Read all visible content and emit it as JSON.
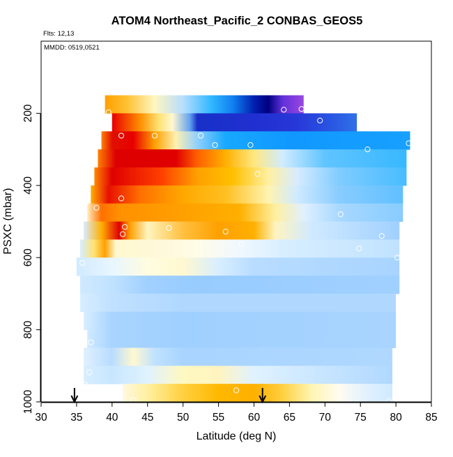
{
  "chart_data": {
    "type": "heatmap",
    "title": "ATOM4 Northeast_Pacific_2 CONBAS_GEOS5",
    "flights_label": "Flts: 12,13",
    "dates_label": "MMDD: 0519,0521",
    "xlabel": "Latitude (deg N)",
    "ylabel": "PSXC (mbar)",
    "xlim": [
      30,
      85
    ],
    "ylim": [
      1000,
      0
    ],
    "x_ticks": [
      30,
      35,
      40,
      45,
      50,
      55,
      60,
      65,
      70,
      75,
      80,
      85
    ],
    "x_tick_labels": [
      "30",
      "35",
      "40",
      "45",
      "50",
      "55",
      "60",
      "65",
      "70",
      "75",
      "80",
      "85"
    ],
    "y_ticks": [
      200,
      400,
      600,
      800,
      1000
    ],
    "y_tick_labels": [
      "200",
      "400",
      "600",
      "800",
      "1000"
    ],
    "grid": false,
    "legend": "none",
    "colors": {
      "red": "#dd0000",
      "orange": "#ff9900",
      "light_yellow": "#fffcc0",
      "light_blue": "#a8d4ff",
      "cyan_blue": "#0fb0ff",
      "dark_blue": "#2020c8",
      "purple": "#8a3ad8"
    },
    "bands": [
      {
        "p_top": 150,
        "p_bot": 200,
        "lat_min": 39.0,
        "lat_max": 67.0,
        "stops": [
          [
            39.0,
            "#ffa000"
          ],
          [
            42.0,
            "#ffc030"
          ],
          [
            46.0,
            "#fff6c0"
          ],
          [
            50.0,
            "#b8ddff"
          ],
          [
            54.0,
            "#30b8ff"
          ],
          [
            57.0,
            "#1080f0"
          ],
          [
            60.0,
            "#0020b0"
          ],
          [
            62.0,
            "#000080"
          ],
          [
            64.0,
            "#6030d8"
          ],
          [
            67.0,
            "#9a48e0"
          ]
        ]
      },
      {
        "p_top": 200,
        "p_bot": 250,
        "lat_min": 40.0,
        "lat_max": 74.5,
        "stops": [
          [
            40.0,
            "#e80000"
          ],
          [
            44.0,
            "#ff9000"
          ],
          [
            46.5,
            "#ffe070"
          ],
          [
            48.5,
            "#fff8d0"
          ],
          [
            51.0,
            "#60a0f0"
          ],
          [
            52.0,
            "#1830c8"
          ],
          [
            60.0,
            "#2030d0"
          ],
          [
            66.0,
            "#2838d8"
          ],
          [
            70.0,
            "#2850e0"
          ],
          [
            74.5,
            "#3070e8"
          ]
        ]
      },
      {
        "p_top": 250,
        "p_bot": 300,
        "lat_min": 38.5,
        "lat_max": 82.0,
        "stops": [
          [
            38.5,
            "#ff8000"
          ],
          [
            40.0,
            "#e01000"
          ],
          [
            43.0,
            "#e80000"
          ],
          [
            46.0,
            "#ffa000"
          ],
          [
            49.0,
            "#fff0b0"
          ],
          [
            52.0,
            "#90d0ff"
          ],
          [
            56.0,
            "#18a8ff"
          ],
          [
            65.0,
            "#1098ff"
          ],
          [
            82.0,
            "#18a0ff"
          ]
        ]
      },
      {
        "p_top": 300,
        "p_bot": 350,
        "lat_min": 38.0,
        "lat_max": 81.5,
        "stops": [
          [
            38.0,
            "#ff8000"
          ],
          [
            40.5,
            "#dd0000"
          ],
          [
            49.0,
            "#e00000"
          ],
          [
            52.0,
            "#ff6000"
          ],
          [
            56.0,
            "#ffb000"
          ],
          [
            60.0,
            "#ffe880"
          ],
          [
            64.0,
            "#d0ecff"
          ],
          [
            70.0,
            "#60c4ff"
          ],
          [
            81.5,
            "#38b8ff"
          ]
        ]
      },
      {
        "p_top": 350,
        "p_bot": 400,
        "lat_min": 37.5,
        "lat_max": 81.5,
        "stops": [
          [
            37.5,
            "#ff8800"
          ],
          [
            40.0,
            "#e00000"
          ],
          [
            47.0,
            "#ff4000"
          ],
          [
            52.0,
            "#ffa000"
          ],
          [
            57.0,
            "#ffc000"
          ],
          [
            62.0,
            "#fff0a0"
          ],
          [
            66.0,
            "#d8ecff"
          ],
          [
            72.0,
            "#80ccff"
          ],
          [
            81.5,
            "#48bcff"
          ]
        ]
      },
      {
        "p_top": 400,
        "p_bot": 450,
        "lat_min": 37.0,
        "lat_max": 81.0,
        "stops": [
          [
            37.0,
            "#ffb000"
          ],
          [
            39.5,
            "#e81000"
          ],
          [
            44.0,
            "#ff7000"
          ],
          [
            50.0,
            "#ffa800"
          ],
          [
            56.0,
            "#ffc020"
          ],
          [
            62.0,
            "#fff4b0"
          ],
          [
            66.0,
            "#d0eaff"
          ],
          [
            72.0,
            "#88ccff"
          ],
          [
            81.0,
            "#60c0ff"
          ]
        ]
      },
      {
        "p_top": 450,
        "p_bot": 500,
        "lat_min": 36.5,
        "lat_max": 81.0,
        "stops": [
          [
            36.5,
            "#fff0c0"
          ],
          [
            38.5,
            "#ff7000"
          ],
          [
            41.0,
            "#ff9000"
          ],
          [
            50.0,
            "#ffa000"
          ],
          [
            58.0,
            "#ffb000"
          ],
          [
            63.0,
            "#fff0a0"
          ],
          [
            67.0,
            "#e0f0ff"
          ],
          [
            72.0,
            "#a8d8ff"
          ],
          [
            81.0,
            "#88ccff"
          ]
        ]
      },
      {
        "p_top": 500,
        "p_bot": 550,
        "lat_min": 36.0,
        "lat_max": 80.5,
        "stops": [
          [
            36.0,
            "#d8ecff"
          ],
          [
            38.5,
            "#ffb000"
          ],
          [
            41.0,
            "#e00000"
          ],
          [
            42.5,
            "#ffa000"
          ],
          [
            45.0,
            "#fff4c0"
          ],
          [
            50.0,
            "#ffc040"
          ],
          [
            55.0,
            "#ffa000"
          ],
          [
            60.0,
            "#ffb000"
          ],
          [
            63.0,
            "#fff4c0"
          ],
          [
            68.0,
            "#d0eaff"
          ],
          [
            80.5,
            "#a0d0ff"
          ]
        ]
      },
      {
        "p_top": 550,
        "p_bot": 600,
        "lat_min": 35.5,
        "lat_max": 80.5,
        "stops": [
          [
            35.5,
            "#d8eeff"
          ],
          [
            37.5,
            "#ffe070"
          ],
          [
            39.0,
            "#ffa000"
          ],
          [
            40.5,
            "#fff8d0"
          ],
          [
            46.0,
            "#fff8d8"
          ],
          [
            52.0,
            "#fffce8"
          ],
          [
            58.0,
            "#f0f8ff"
          ],
          [
            64.0,
            "#d8eeff"
          ],
          [
            80.5,
            "#c0e2ff"
          ]
        ]
      },
      {
        "p_top": 600,
        "p_bot": 650,
        "lat_min": 35.0,
        "lat_max": 80.5,
        "stops": [
          [
            35.0,
            "#d0eaff"
          ],
          [
            40.0,
            "#e8f6ff"
          ],
          [
            45.0,
            "#fffce0"
          ],
          [
            50.0,
            "#fff8d0"
          ],
          [
            55.0,
            "#d8eeff"
          ],
          [
            60.0,
            "#b8dcff"
          ],
          [
            80.5,
            "#a8d4ff"
          ]
        ]
      },
      {
        "p_top": 650,
        "p_bot": 700,
        "lat_min": 35.5,
        "lat_max": 80.5,
        "stops": [
          [
            35.5,
            "#d0eaff"
          ],
          [
            40.0,
            "#c0e2ff"
          ],
          [
            45.0,
            "#a0d0ff"
          ],
          [
            52.0,
            "#98ccff"
          ],
          [
            80.5,
            "#a0d0ff"
          ]
        ]
      },
      {
        "p_top": 700,
        "p_bot": 750,
        "lat_min": 35.5,
        "lat_max": 80.0,
        "stops": [
          [
            35.5,
            "#d8eeff"
          ],
          [
            40.0,
            "#c0e0ff"
          ],
          [
            50.0,
            "#b0d8ff"
          ],
          [
            80.0,
            "#b0d8ff"
          ]
        ]
      },
      {
        "p_top": 750,
        "p_bot": 800,
        "lat_min": 36.0,
        "lat_max": 80.0,
        "stops": [
          [
            36.0,
            "#d8eeff"
          ],
          [
            40.0,
            "#a8d4ff"
          ],
          [
            50.0,
            "#a0d0ff"
          ],
          [
            80.0,
            "#a8d4ff"
          ]
        ]
      },
      {
        "p_top": 800,
        "p_bot": 850,
        "lat_min": 36.5,
        "lat_max": 80.0,
        "stops": [
          [
            36.5,
            "#d0eaff"
          ],
          [
            40.0,
            "#a8d4ff"
          ],
          [
            50.0,
            "#a0d0ff"
          ],
          [
            80.0,
            "#a8d4ff"
          ]
        ]
      },
      {
        "p_top": 850,
        "p_bot": 900,
        "lat_min": 36.0,
        "lat_max": 79.5,
        "stops": [
          [
            36.0,
            "#e0f0ff"
          ],
          [
            40.0,
            "#b8dcff"
          ],
          [
            43.0,
            "#fff8d0"
          ],
          [
            46.0,
            "#c0e2ff"
          ],
          [
            50.0,
            "#a8d4ff"
          ],
          [
            79.5,
            "#b0d8ff"
          ]
        ]
      },
      {
        "p_top": 900,
        "p_bot": 950,
        "lat_min": 36.0,
        "lat_max": 79.5,
        "stops": [
          [
            36.0,
            "#d8eeff"
          ],
          [
            40.0,
            "#c8e6ff"
          ],
          [
            45.0,
            "#e0f2ff"
          ],
          [
            50.0,
            "#fff8c0"
          ],
          [
            55.0,
            "#fff4c0"
          ],
          [
            60.0,
            "#e0f2ff"
          ],
          [
            79.5,
            "#b0d8ff"
          ]
        ]
      },
      {
        "p_top": 950,
        "p_bot": 1000,
        "lat_min": 41.5,
        "lat_max": 79.5,
        "stops": [
          [
            41.5,
            "#fff8e0"
          ],
          [
            45.0,
            "#fff0a0"
          ],
          [
            50.0,
            "#ffd040"
          ],
          [
            55.0,
            "#ffb800"
          ],
          [
            60.0,
            "#ffb000"
          ],
          [
            64.0,
            "#ffd040"
          ],
          [
            68.0,
            "#fff4b0"
          ],
          [
            72.0,
            "#fffcf0"
          ],
          [
            76.0,
            "#e0f0ff"
          ],
          [
            79.5,
            "#d0eaff"
          ]
        ]
      }
    ],
    "points": [
      [
        39.5,
        197
      ],
      [
        41.3,
        262
      ],
      [
        46.0,
        262
      ],
      [
        52.5,
        262
      ],
      [
        54.5,
        288
      ],
      [
        59.5,
        288
      ],
      [
        64.2,
        190
      ],
      [
        66.7,
        188
      ],
      [
        69.3,
        220
      ],
      [
        76.0,
        300
      ],
      [
        81.8,
        283
      ],
      [
        60.5,
        368
      ],
      [
        37.8,
        462
      ],
      [
        41.3,
        436
      ],
      [
        41.8,
        515
      ],
      [
        41.5,
        535
      ],
      [
        48.0,
        518
      ],
      [
        56.0,
        528
      ],
      [
        58.2,
        563
      ],
      [
        72.2,
        480
      ],
      [
        74.8,
        575
      ],
      [
        78.0,
        540
      ],
      [
        80.2,
        600
      ],
      [
        35.8,
        615
      ],
      [
        37.0,
        835
      ],
      [
        36.8,
        918
      ],
      [
        36.2,
        952
      ],
      [
        43.0,
        995
      ],
      [
        57.5,
        968
      ],
      [
        79.0,
        998
      ]
    ],
    "arrows": [
      34.7,
      61.2
    ]
  }
}
